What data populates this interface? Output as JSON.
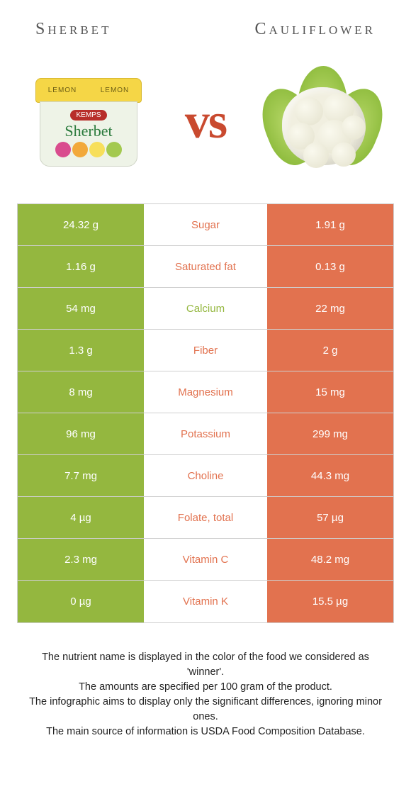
{
  "colors": {
    "left": "#94b73f",
    "right": "#e2724f",
    "label_left": "#94b73f",
    "label_right": "#e2724f"
  },
  "header": {
    "left_title": "Sherbet",
    "right_title": "Cauliflower",
    "vs": "vs"
  },
  "sherbet": {
    "lid_text": "LEMON",
    "brand": "KEMPS",
    "script": "Sherbet",
    "fruit_colors": [
      "#d94c8e",
      "#f2a93b",
      "#f7df5b",
      "#a3c94f"
    ]
  },
  "rows": [
    {
      "left": "24.32 g",
      "label": "Sugar",
      "right": "1.91 g",
      "winner": "right"
    },
    {
      "left": "1.16 g",
      "label": "Saturated fat",
      "right": "0.13 g",
      "winner": "right"
    },
    {
      "left": "54 mg",
      "label": "Calcium",
      "right": "22 mg",
      "winner": "left"
    },
    {
      "left": "1.3 g",
      "label": "Fiber",
      "right": "2 g",
      "winner": "right"
    },
    {
      "left": "8 mg",
      "label": "Magnesium",
      "right": "15 mg",
      "winner": "right"
    },
    {
      "left": "96 mg",
      "label": "Potassium",
      "right": "299 mg",
      "winner": "right"
    },
    {
      "left": "7.7 mg",
      "label": "Choline",
      "right": "44.3 mg",
      "winner": "right"
    },
    {
      "left": "4 µg",
      "label": "Folate, total",
      "right": "57 µg",
      "winner": "right"
    },
    {
      "left": "2.3 mg",
      "label": "Vitamin C",
      "right": "48.2 mg",
      "winner": "right"
    },
    {
      "left": "0 µg",
      "label": "Vitamin K",
      "right": "15.5 µg",
      "winner": "right"
    }
  ],
  "footnotes": [
    "The nutrient name is displayed in the color of the food we considered as 'winner'.",
    "The amounts are specified per 100 gram of the product.",
    "The infographic aims to display only the significant differences, ignoring minor ones.",
    "The main source of information is USDA Food Composition Database."
  ]
}
